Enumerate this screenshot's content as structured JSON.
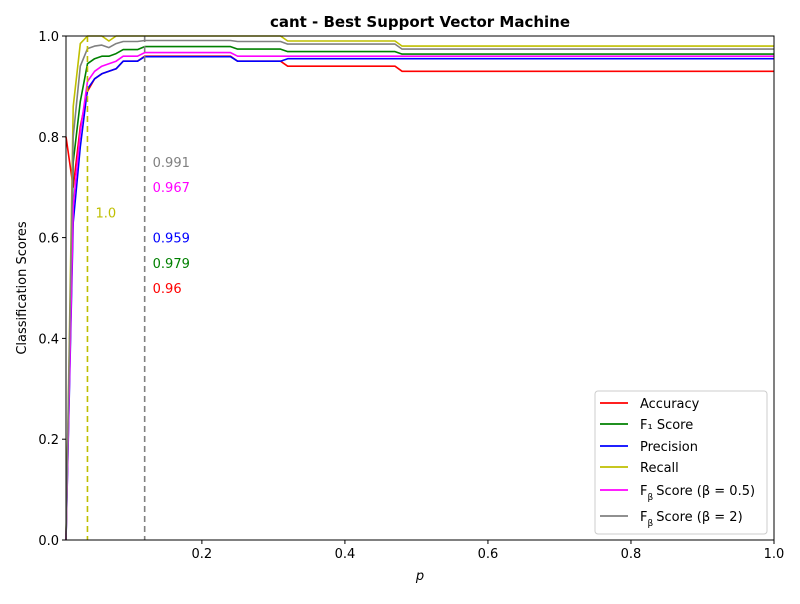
{
  "chart_data": {
    "type": "line",
    "title": "cant - Best Support Vector Machine",
    "xlabel": "p",
    "ylabel": "Classification Scores",
    "xlim": [
      0.01,
      1.0
    ],
    "ylim": [
      0.0,
      1.0
    ],
    "x_ticks": [
      "0.2",
      "0.4",
      "0.6",
      "0.8",
      "1.0"
    ],
    "y_ticks": [
      "0.0",
      "0.2",
      "0.4",
      "0.6",
      "0.8",
      "1.0"
    ],
    "grid": false,
    "legend_position": "lower-right",
    "series": [
      {
        "name": "Accuracy",
        "color": "#ff0000",
        "points": [
          [
            0.01,
            0.8
          ],
          [
            0.02,
            0.7
          ],
          [
            0.03,
            0.82
          ],
          [
            0.04,
            0.89
          ],
          [
            0.05,
            0.915
          ],
          [
            0.06,
            0.925
          ],
          [
            0.07,
            0.93
          ],
          [
            0.08,
            0.935
          ],
          [
            0.09,
            0.95
          ],
          [
            0.11,
            0.95
          ],
          [
            0.12,
            0.96
          ],
          [
            0.24,
            0.96
          ],
          [
            0.25,
            0.95
          ],
          [
            0.31,
            0.95
          ],
          [
            0.32,
            0.94
          ],
          [
            0.47,
            0.94
          ],
          [
            0.48,
            0.93
          ],
          [
            1.0,
            0.93
          ]
        ]
      },
      {
        "name": "F₁ Score",
        "color": "#008000",
        "points": [
          [
            0.01,
            0.0
          ],
          [
            0.02,
            0.75
          ],
          [
            0.03,
            0.87
          ],
          [
            0.04,
            0.945
          ],
          [
            0.05,
            0.955
          ],
          [
            0.06,
            0.96
          ],
          [
            0.07,
            0.96
          ],
          [
            0.08,
            0.965
          ],
          [
            0.09,
            0.973
          ],
          [
            0.11,
            0.973
          ],
          [
            0.12,
            0.979
          ],
          [
            0.24,
            0.979
          ],
          [
            0.25,
            0.974
          ],
          [
            0.31,
            0.974
          ],
          [
            0.32,
            0.969
          ],
          [
            0.47,
            0.969
          ],
          [
            0.48,
            0.964
          ],
          [
            1.0,
            0.964
          ]
        ]
      },
      {
        "name": "Precision",
        "color": "#0000ff",
        "points": [
          [
            0.01,
            0.0
          ],
          [
            0.02,
            0.63
          ],
          [
            0.03,
            0.78
          ],
          [
            0.04,
            0.895
          ],
          [
            0.05,
            0.915
          ],
          [
            0.06,
            0.925
          ],
          [
            0.07,
            0.93
          ],
          [
            0.08,
            0.935
          ],
          [
            0.09,
            0.95
          ],
          [
            0.11,
            0.95
          ],
          [
            0.12,
            0.959
          ],
          [
            0.24,
            0.959
          ],
          [
            0.25,
            0.95
          ],
          [
            0.31,
            0.95
          ],
          [
            0.32,
            0.955
          ],
          [
            1.0,
            0.955
          ]
        ]
      },
      {
        "name": "Recall",
        "color": "#bfbf00",
        "points": [
          [
            0.01,
            0.0
          ],
          [
            0.02,
            0.86
          ],
          [
            0.03,
            0.985
          ],
          [
            0.04,
            1.0
          ],
          [
            0.06,
            1.0
          ],
          [
            0.07,
            0.99
          ],
          [
            0.08,
            1.0
          ],
          [
            0.31,
            1.0
          ],
          [
            0.32,
            0.99
          ],
          [
            0.47,
            0.99
          ],
          [
            0.48,
            0.98
          ],
          [
            1.0,
            0.98
          ]
        ]
      },
      {
        "name": "F_β Score (β=0.5)",
        "color": "#ff00ff",
        "points": [
          [
            0.01,
            0.0
          ],
          [
            0.02,
            0.66
          ],
          [
            0.03,
            0.81
          ],
          [
            0.04,
            0.91
          ],
          [
            0.05,
            0.93
          ],
          [
            0.06,
            0.94
          ],
          [
            0.07,
            0.945
          ],
          [
            0.08,
            0.95
          ],
          [
            0.09,
            0.96
          ],
          [
            0.11,
            0.96
          ],
          [
            0.12,
            0.967
          ],
          [
            0.24,
            0.967
          ],
          [
            0.25,
            0.96
          ],
          [
            0.31,
            0.96
          ],
          [
            0.32,
            0.96
          ],
          [
            1.0,
            0.96
          ]
        ]
      },
      {
        "name": "F_β Score (β=2)",
        "color": "#808080",
        "points": [
          [
            0.01,
            0.0
          ],
          [
            0.02,
            0.8
          ],
          [
            0.03,
            0.94
          ],
          [
            0.04,
            0.975
          ],
          [
            0.05,
            0.98
          ],
          [
            0.06,
            0.982
          ],
          [
            0.07,
            0.977
          ],
          [
            0.08,
            0.985
          ],
          [
            0.09,
            0.989
          ],
          [
            0.11,
            0.989
          ],
          [
            0.12,
            0.991
          ],
          [
            0.24,
            0.991
          ],
          [
            0.25,
            0.989
          ],
          [
            0.31,
            0.989
          ],
          [
            0.32,
            0.984
          ],
          [
            0.47,
            0.984
          ],
          [
            0.48,
            0.974
          ],
          [
            1.0,
            0.974
          ]
        ]
      }
    ],
    "vertical_lines": [
      {
        "x": 0.04,
        "color": "#bfbf00",
        "style": "dashed"
      },
      {
        "x": 0.12,
        "color": "#808080",
        "style": "dashed"
      }
    ],
    "annotations": [
      {
        "text": "0.991",
        "x": 0.12,
        "y": 0.75,
        "color": "#808080"
      },
      {
        "text": "0.967",
        "x": 0.12,
        "y": 0.7,
        "color": "#ff00ff"
      },
      {
        "text": "1.0",
        "x": 0.04,
        "y": 0.65,
        "color": "#bfbf00"
      },
      {
        "text": "0.959",
        "x": 0.12,
        "y": 0.6,
        "color": "#0000ff"
      },
      {
        "text": "0.979",
        "x": 0.12,
        "y": 0.55,
        "color": "#008000"
      },
      {
        "text": "0.96",
        "x": 0.12,
        "y": 0.5,
        "color": "#ff0000"
      }
    ]
  }
}
